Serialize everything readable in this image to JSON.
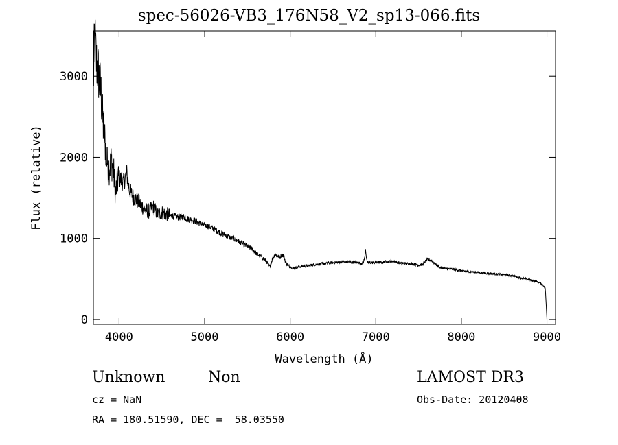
{
  "title": "spec-56026-VB3_176N58_V2_sp13-066.fits",
  "info": {
    "class": "Unknown",
    "subclass": "Non",
    "survey": "LAMOST DR3",
    "cz": "cz = NaN",
    "obs_date": "Obs-Date: 20120408",
    "radec": "RA = 180.51590, DEC =  58.03550"
  },
  "chart_data": {
    "type": "line",
    "xlabel": "Wavelength (Å)",
    "ylabel": "Flux (relative)",
    "xlim": [
      3700,
      9100
    ],
    "ylim": [
      -60,
      3560
    ],
    "x_ticks": [
      4000,
      5000,
      6000,
      7000,
      8000,
      9000
    ],
    "y_ticks": [
      0,
      1000,
      2000,
      3000
    ],
    "grid": false,
    "series": [
      {
        "color": "#000000",
        "points": [
          [
            3700,
            2900
          ],
          [
            3715,
            3500
          ],
          [
            3725,
            3330
          ],
          [
            3735,
            3180
          ],
          [
            3750,
            3100
          ],
          [
            3770,
            2950
          ],
          [
            3790,
            2780
          ],
          [
            3810,
            2450
          ],
          [
            3830,
            2250
          ],
          [
            3850,
            2050
          ],
          [
            3870,
            1900
          ],
          [
            3890,
            1870
          ],
          [
            3910,
            1960
          ],
          [
            3935,
            1820
          ],
          [
            3960,
            1560
          ],
          [
            3990,
            1740
          ],
          [
            4020,
            1730
          ],
          [
            4050,
            1680
          ],
          [
            4090,
            1800
          ],
          [
            4120,
            1600
          ],
          [
            4160,
            1520
          ],
          [
            4200,
            1480
          ],
          [
            4250,
            1420
          ],
          [
            4300,
            1360
          ],
          [
            4350,
            1330
          ],
          [
            4400,
            1390
          ],
          [
            4450,
            1300
          ],
          [
            4500,
            1320
          ],
          [
            4550,
            1300
          ],
          [
            4600,
            1280
          ],
          [
            4650,
            1270
          ],
          [
            4700,
            1260
          ],
          [
            4750,
            1270
          ],
          [
            4800,
            1240
          ],
          [
            4850,
            1230
          ],
          [
            4900,
            1210
          ],
          [
            4950,
            1180
          ],
          [
            5000,
            1160
          ],
          [
            5050,
            1150
          ],
          [
            5100,
            1120
          ],
          [
            5150,
            1090
          ],
          [
            5200,
            1060
          ],
          [
            5250,
            1040
          ],
          [
            5300,
            1010
          ],
          [
            5350,
            990
          ],
          [
            5400,
            960
          ],
          [
            5450,
            930
          ],
          [
            5500,
            900
          ],
          [
            5550,
            870
          ],
          [
            5600,
            820
          ],
          [
            5650,
            780
          ],
          [
            5700,
            740
          ],
          [
            5730,
            700
          ],
          [
            5760,
            650
          ],
          [
            5790,
            740
          ],
          [
            5820,
            800
          ],
          [
            5850,
            790
          ],
          [
            5880,
            760
          ],
          [
            5900,
            800
          ],
          [
            5920,
            790
          ],
          [
            5950,
            700
          ],
          [
            5980,
            660
          ],
          [
            6000,
            650
          ],
          [
            6030,
            630
          ],
          [
            6070,
            640
          ],
          [
            6100,
            650
          ],
          [
            6200,
            660
          ],
          [
            6300,
            680
          ],
          [
            6400,
            690
          ],
          [
            6500,
            700
          ],
          [
            6600,
            710
          ],
          [
            6700,
            710
          ],
          [
            6800,
            700
          ],
          [
            6850,
            690
          ],
          [
            6870,
            760
          ],
          [
            6880,
            880
          ],
          [
            6890,
            760
          ],
          [
            6900,
            700
          ],
          [
            7000,
            700
          ],
          [
            7100,
            710
          ],
          [
            7200,
            720
          ],
          [
            7300,
            690
          ],
          [
            7400,
            690
          ],
          [
            7500,
            670
          ],
          [
            7550,
            680
          ],
          [
            7600,
            740
          ],
          [
            7650,
            730
          ],
          [
            7680,
            700
          ],
          [
            7700,
            680
          ],
          [
            7750,
            640
          ],
          [
            7800,
            630
          ],
          [
            7900,
            620
          ],
          [
            8000,
            600
          ],
          [
            8100,
            590
          ],
          [
            8200,
            580
          ],
          [
            8300,
            570
          ],
          [
            8400,
            560
          ],
          [
            8500,
            550
          ],
          [
            8600,
            540
          ],
          [
            8700,
            510
          ],
          [
            8800,
            490
          ],
          [
            8900,
            460
          ],
          [
            8950,
            430
          ],
          [
            8980,
            380
          ],
          [
            8990,
            200
          ],
          [
            9000,
            0
          ]
        ]
      }
    ]
  }
}
